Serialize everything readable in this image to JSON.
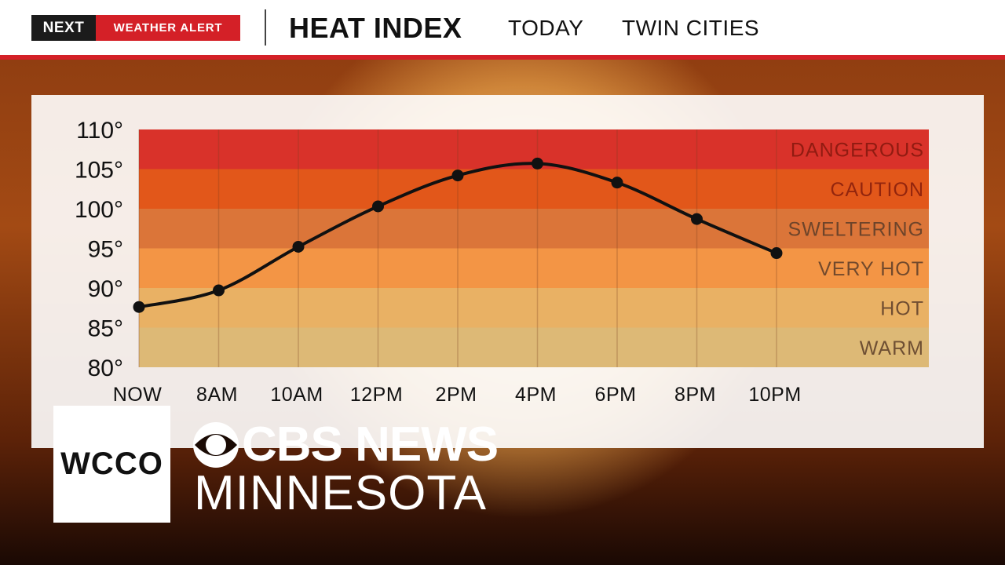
{
  "header": {
    "network_logo": "NEXT",
    "alert_label": "WEATHER ALERT",
    "title": "HEAT INDEX",
    "when": "TODAY",
    "where": "TWIN CITIES"
  },
  "chart_data": {
    "type": "line",
    "categories": [
      "NOW",
      "8AM",
      "10AM",
      "12PM",
      "2PM",
      "4PM",
      "6PM",
      "8PM",
      "10PM"
    ],
    "series": [
      {
        "values": [
          87.6,
          89.7,
          95.2,
          100.3,
          104.2,
          105.7,
          103.3,
          98.7,
          94.4
        ]
      }
    ],
    "ylim": [
      80,
      110
    ],
    "yticks": [
      110,
      105,
      100,
      95,
      90,
      85,
      80
    ],
    "ytick_suffix": "°",
    "bands": [
      {
        "label": "DANGEROUS",
        "from": 105,
        "to": 110,
        "color": "#d9322a"
      },
      {
        "label": "CAUTION",
        "from": 100,
        "to": 105,
        "color": "#e2571a"
      },
      {
        "label": "SWELTERING",
        "from": 95,
        "to": 100,
        "color": "#db7539"
      },
      {
        "label": "VERY HOT",
        "from": 90,
        "to": 95,
        "color": "#f39545"
      },
      {
        "label": "HOT",
        "from": 85,
        "to": 90,
        "color": "#e9b164"
      },
      {
        "label": "WARM",
        "from": 80,
        "to": 85,
        "color": "#ddb976"
      }
    ],
    "grid": true,
    "line_color": "#111111"
  },
  "branding": {
    "station": "WCCO",
    "network": "CBS NEWS",
    "market": "MINNESOTA"
  }
}
